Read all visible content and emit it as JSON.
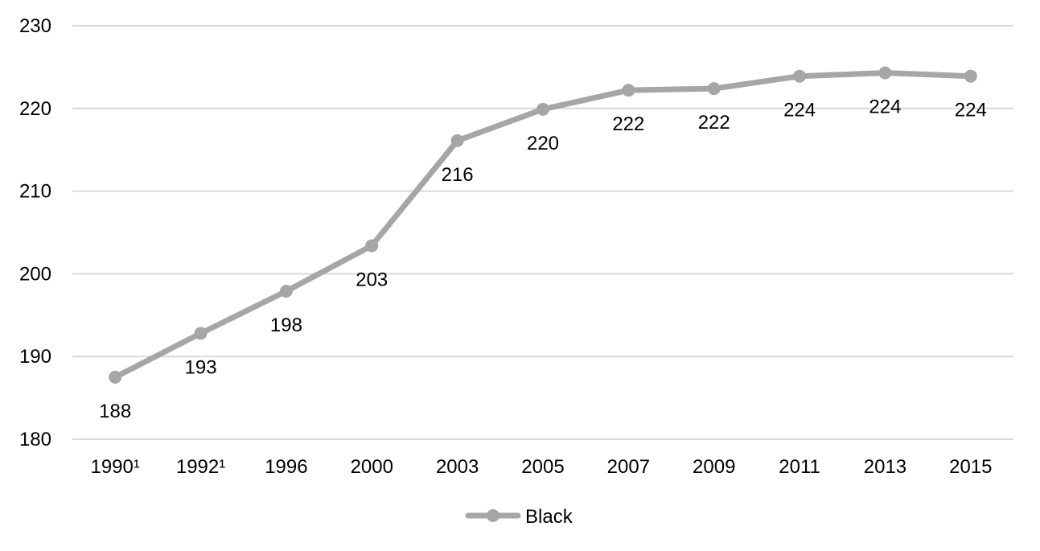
{
  "chart_data": {
    "type": "line",
    "title": "",
    "xlabel": "",
    "ylabel": "",
    "categories": [
      "1990¹",
      "1992¹",
      "1996",
      "2000",
      "2003",
      "2005",
      "2007",
      "2009",
      "2011",
      "2013",
      "2015"
    ],
    "ylim": [
      180,
      230
    ],
    "yticks": [
      180,
      190,
      200,
      210,
      220,
      230
    ],
    "grid": true,
    "legend_position": "bottom",
    "series": [
      {
        "name": "Black",
        "color": "#a6a6a6",
        "values": [
          187.5,
          192.8,
          197.9,
          203.4,
          216.1,
          219.9,
          222.2,
          222.4,
          223.9,
          224.3,
          223.9
        ],
        "labels": [
          "188",
          "193",
          "198",
          "203",
          "216",
          "220",
          "222",
          "222",
          "224",
          "224",
          "224"
        ]
      }
    ]
  }
}
